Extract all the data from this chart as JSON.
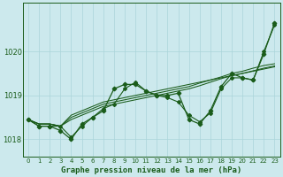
{
  "title": "Graphe pression niveau de la mer (hPa)",
  "background_color": "#cce9ed",
  "grid_color": "#aad4da",
  "line_color": "#1a5c1a",
  "xlim": [
    -0.5,
    23.5
  ],
  "ylim": [
    1017.6,
    1021.1
  ],
  "yticks": [
    1018,
    1019,
    1020
  ],
  "xticks": [
    0,
    1,
    2,
    3,
    4,
    5,
    6,
    7,
    8,
    9,
    10,
    11,
    12,
    13,
    14,
    15,
    16,
    17,
    18,
    19,
    20,
    21,
    22,
    23
  ],
  "series_no_marker": [
    [
      1018.45,
      1018.35,
      1018.35,
      1018.3,
      1018.55,
      1018.65,
      1018.75,
      1018.85,
      1018.9,
      1018.95,
      1019.0,
      1019.05,
      1019.1,
      1019.15,
      1019.2,
      1019.25,
      1019.3,
      1019.35,
      1019.4,
      1019.45,
      1019.5,
      1019.55,
      1019.6,
      1019.65
    ],
    [
      1018.45,
      1018.35,
      1018.35,
      1018.3,
      1018.5,
      1018.6,
      1018.7,
      1018.8,
      1018.85,
      1018.9,
      1018.95,
      1019.0,
      1019.05,
      1019.1,
      1019.15,
      1019.2,
      1019.28,
      1019.35,
      1019.42,
      1019.5,
      1019.55,
      1019.62,
      1019.68,
      1019.72
    ],
    [
      1018.45,
      1018.35,
      1018.35,
      1018.3,
      1018.45,
      1018.55,
      1018.65,
      1018.75,
      1018.8,
      1018.85,
      1018.9,
      1018.95,
      1019.0,
      1019.05,
      1019.1,
      1019.15,
      1019.22,
      1019.3,
      1019.38,
      1019.45,
      1019.5,
      1019.56,
      1019.62,
      1019.67
    ]
  ],
  "main_series": [
    1018.45,
    1018.3,
    1018.3,
    1018.2,
    1018.0,
    1018.35,
    1018.5,
    1018.65,
    1019.15,
    1019.25,
    1019.25,
    1019.1,
    1019.0,
    1019.0,
    1019.05,
    1018.45,
    1018.35,
    1018.65,
    1019.2,
    1019.5,
    1019.4,
    1019.35,
    1019.95,
    1020.65
  ],
  "series2": [
    1018.45,
    1018.3,
    1018.3,
    1018.3,
    1018.05,
    1018.3,
    1018.5,
    1018.7,
    1018.8,
    1019.15,
    1019.3,
    1019.1,
    1019.0,
    1018.95,
    1018.85,
    1018.55,
    1018.4,
    1018.6,
    1019.15,
    1019.4,
    1019.4,
    1019.35,
    1020.0,
    1020.6
  ]
}
